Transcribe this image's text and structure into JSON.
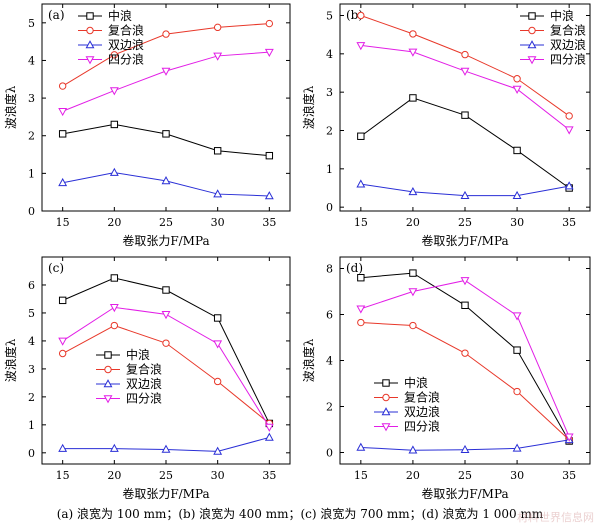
{
  "figure": {
    "caption": "(a) 浪宽为 100 mm；(b) 浪宽为 400 mm；(c) 浪宽为 700 mm；(d) 浪宽为 1 000 mm",
    "watermark": "材料世界信息网"
  },
  "series_style": [
    {
      "name": "中浪",
      "color": "#000000",
      "marker": "square"
    },
    {
      "name": "复合浪",
      "color": "#e8382a",
      "marker": "circle"
    },
    {
      "name": "双边浪",
      "color": "#2a2fd6",
      "marker": "triangle-up"
    },
    {
      "name": "四分浪",
      "color": "#e21ee6",
      "marker": "triangle-down"
    }
  ],
  "chart_data": [
    {
      "panel": "(a)",
      "type": "line",
      "xlabel": "卷取张力F/MPa",
      "ylabel": "波浪度λ",
      "x": [
        15,
        20,
        25,
        30,
        35
      ],
      "xlim": [
        13,
        37
      ],
      "ylim": [
        0,
        5.5
      ],
      "yticks": [
        0,
        1,
        2,
        3,
        4,
        5
      ],
      "legend_position": "top-left",
      "series": [
        {
          "name": "中浪",
          "values": [
            2.05,
            2.3,
            2.05,
            1.6,
            1.47
          ]
        },
        {
          "name": "复合浪",
          "values": [
            3.32,
            4.15,
            4.7,
            4.88,
            4.98
          ]
        },
        {
          "name": "双边浪",
          "values": [
            0.75,
            1.02,
            0.8,
            0.45,
            0.4
          ]
        },
        {
          "name": "四分浪",
          "values": [
            2.65,
            3.2,
            3.72,
            4.12,
            4.22
          ]
        }
      ]
    },
    {
      "panel": "(b)",
      "type": "line",
      "xlabel": "卷取张力F/MPa",
      "ylabel": "波浪度λ",
      "x": [
        15,
        20,
        25,
        30,
        35
      ],
      "xlim": [
        13,
        37
      ],
      "ylim": [
        -0.1,
        5.3
      ],
      "yticks": [
        0,
        1,
        2,
        3,
        4,
        5
      ],
      "legend_position": "top-right",
      "series": [
        {
          "name": "中浪",
          "values": [
            1.85,
            2.85,
            2.4,
            1.48,
            0.5
          ]
        },
        {
          "name": "复合浪",
          "values": [
            5.0,
            4.52,
            3.98,
            3.35,
            2.38
          ]
        },
        {
          "name": "双边浪",
          "values": [
            0.6,
            0.4,
            0.3,
            0.3,
            0.55
          ]
        },
        {
          "name": "四分浪",
          "values": [
            4.22,
            4.05,
            3.55,
            3.08,
            2.02
          ]
        }
      ]
    },
    {
      "panel": "(c)",
      "type": "line",
      "xlabel": "卷取张力F/MPa",
      "ylabel": "波浪度λ",
      "x": [
        15,
        20,
        25,
        30,
        35
      ],
      "xlim": [
        13,
        37
      ],
      "ylim": [
        -0.4,
        7.0
      ],
      "yticks": [
        0,
        1,
        2,
        3,
        4,
        5,
        6
      ],
      "legend_position": "center-right",
      "series": [
        {
          "name": "中浪",
          "values": [
            5.45,
            6.25,
            5.82,
            4.82,
            1.05
          ]
        },
        {
          "name": "复合浪",
          "values": [
            3.55,
            4.55,
            3.92,
            2.55,
            1.05
          ]
        },
        {
          "name": "双边浪",
          "values": [
            0.15,
            0.15,
            0.12,
            0.05,
            0.55
          ]
        },
        {
          "name": "四分浪",
          "values": [
            4.0,
            5.2,
            4.95,
            3.9,
            0.92
          ]
        }
      ]
    },
    {
      "panel": "(d)",
      "type": "line",
      "xlabel": "卷取张力F/MPa",
      "ylabel": "波浪度λ",
      "x": [
        15,
        20,
        25,
        30,
        35
      ],
      "xlim": [
        13,
        37
      ],
      "ylim": [
        -0.5,
        8.5
      ],
      "yticks": [
        0,
        2,
        4,
        6,
        8
      ],
      "legend_position": "center-left",
      "series": [
        {
          "name": "中浪",
          "values": [
            7.6,
            7.8,
            6.4,
            4.45,
            0.5
          ]
        },
        {
          "name": "复合浪",
          "values": [
            5.65,
            5.52,
            4.32,
            2.65,
            0.55
          ]
        },
        {
          "name": "双边浪",
          "values": [
            0.22,
            0.1,
            0.12,
            0.18,
            0.55
          ]
        },
        {
          "name": "四分浪",
          "values": [
            6.25,
            7.0,
            7.48,
            5.95,
            0.68
          ]
        }
      ]
    }
  ]
}
